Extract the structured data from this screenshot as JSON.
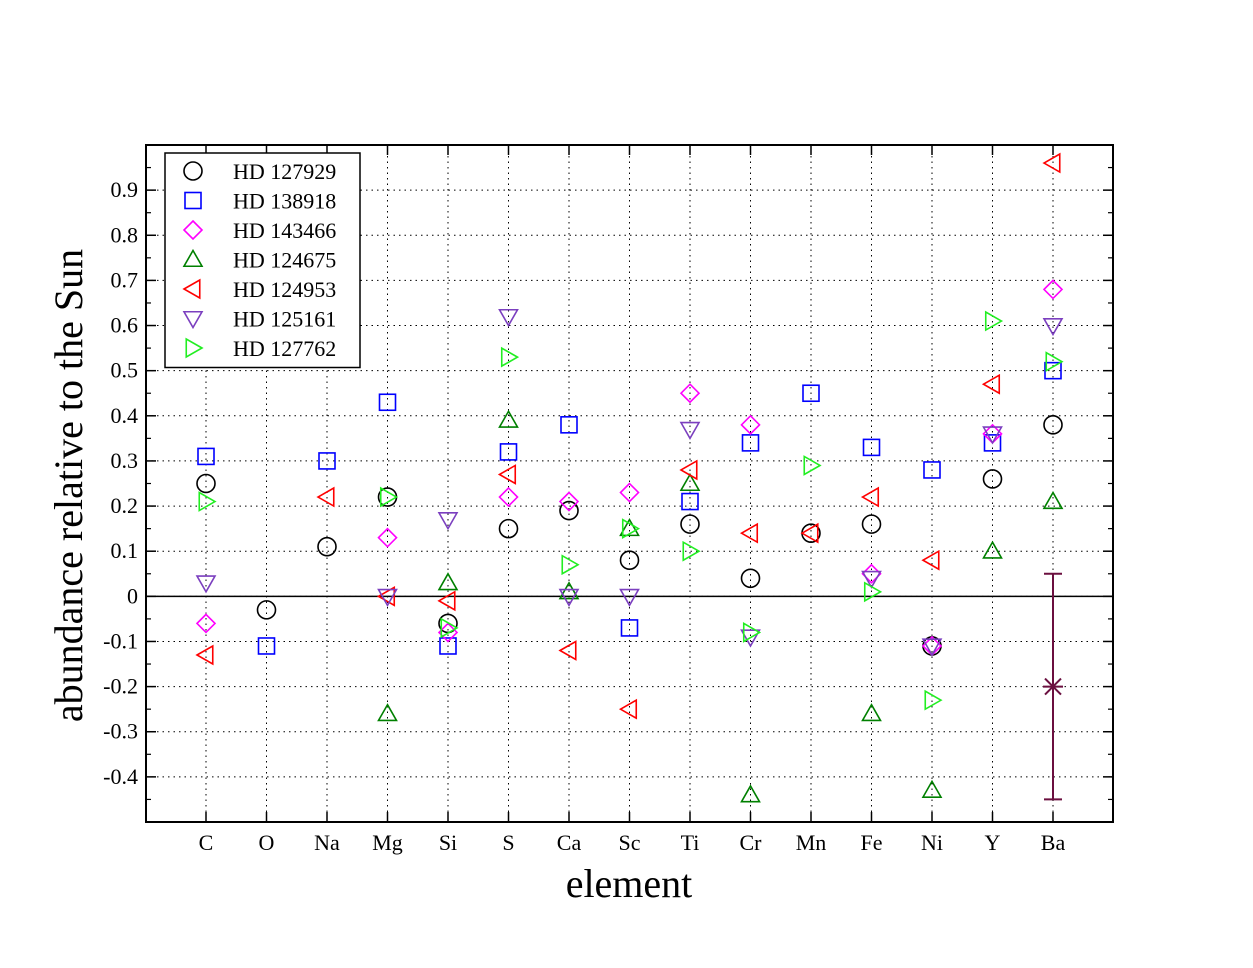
{
  "chart_data": {
    "type": "scatter",
    "xlabel": "element",
    "ylabel": "abundance relative to the Sun",
    "categories": [
      "C",
      "O",
      "Na",
      "Mg",
      "Si",
      "S",
      "Ca",
      "Sc",
      "Ti",
      "Cr",
      "Mn",
      "Fe",
      "Ni",
      "Y",
      "Ba"
    ],
    "ylim": [
      -0.5,
      1.0
    ],
    "yticks": [
      "-0.4",
      "-0.3",
      "-0.2",
      "-0.1",
      "0",
      "0.1",
      "0.2",
      "0.3",
      "0.4",
      "0.5",
      "0.6",
      "0.7",
      "0.8",
      "0.9"
    ],
    "grid": true,
    "legend_position": "top-left",
    "reference_line_y": 0,
    "series": [
      {
        "name": "HD 127929",
        "marker": "circle",
        "color": "#000000",
        "values": [
          0.25,
          -0.03,
          0.11,
          0.22,
          -0.06,
          0.15,
          0.19,
          0.08,
          0.16,
          0.04,
          0.14,
          0.16,
          -0.11,
          0.26,
          0.38
        ]
      },
      {
        "name": "HD 138918",
        "marker": "square",
        "color": "#0000ff",
        "values": [
          0.31,
          -0.11,
          0.3,
          0.43,
          -0.11,
          0.32,
          0.38,
          -0.07,
          0.21,
          0.34,
          0.45,
          0.33,
          0.28,
          0.34,
          0.5
        ]
      },
      {
        "name": "HD 143466",
        "marker": "diamond",
        "color": "#ff00ff",
        "values": [
          -0.06,
          null,
          null,
          0.13,
          -0.08,
          0.22,
          0.21,
          0.23,
          0.45,
          0.38,
          null,
          0.05,
          -0.11,
          0.36,
          0.68
        ]
      },
      {
        "name": "HD 124675",
        "marker": "triangle-up",
        "color": "#008000",
        "values": [
          null,
          null,
          null,
          -0.26,
          0.03,
          0.39,
          0.01,
          0.15,
          0.25,
          -0.44,
          null,
          -0.26,
          -0.43,
          0.1,
          0.21
        ]
      },
      {
        "name": "HD 124953",
        "marker": "triangle-left",
        "color": "#ff0000",
        "values": [
          -0.13,
          null,
          0.22,
          0.0,
          -0.01,
          0.27,
          -0.12,
          -0.25,
          0.28,
          0.14,
          0.14,
          0.22,
          0.08,
          0.47,
          0.96
        ]
      },
      {
        "name": "HD 125161",
        "marker": "triangle-down",
        "color": "#7b3fbf",
        "values": [
          0.03,
          null,
          null,
          0.0,
          0.17,
          0.62,
          0.0,
          0.0,
          0.37,
          -0.09,
          null,
          0.04,
          -0.11,
          0.36,
          0.6
        ]
      },
      {
        "name": "HD 127762",
        "marker": "triangle-right",
        "color": "#22ee22",
        "values": [
          0.21,
          null,
          null,
          0.22,
          -0.07,
          0.53,
          0.07,
          0.15,
          0.1,
          -0.08,
          0.29,
          0.01,
          -0.23,
          0.61,
          0.52
        ]
      }
    ],
    "error_bar": {
      "category": "Ba",
      "value": -0.2,
      "low": -0.45,
      "high": 0.05,
      "color": "#6b0f3f"
    }
  }
}
